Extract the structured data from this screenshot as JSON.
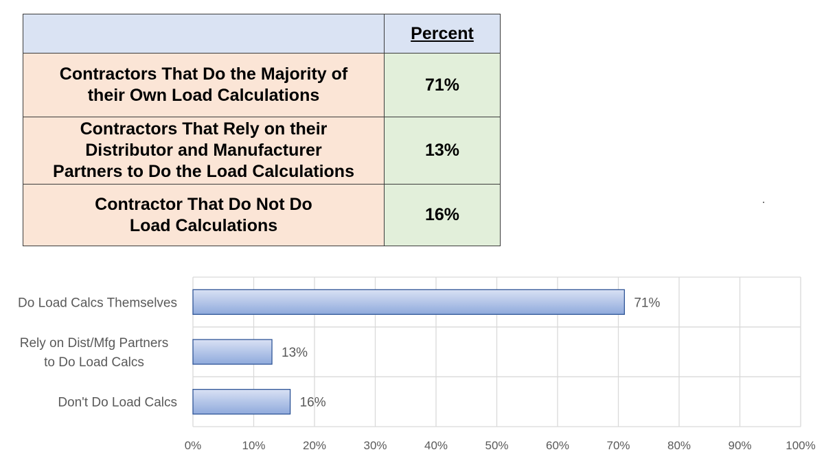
{
  "table": {
    "header": {
      "label": "",
      "percent": "Percent"
    },
    "rows": [
      {
        "label_lines": [
          "Contractors That Do the Majority of",
          "their Own Load Calculations"
        ],
        "value": "71%"
      },
      {
        "label_lines": [
          "Contractors That Rely on their",
          "Distributor and Manufacturer",
          "Partners to Do the Load Calculations"
        ],
        "value": "13%"
      },
      {
        "label_lines": [
          "Contractor That Do Not Do",
          "Load Calculations"
        ],
        "value": "16%"
      }
    ]
  },
  "colors": {
    "header_fill": "#dae3f3",
    "label_fill": "#fbe5d6",
    "value_fill": "#e2efda",
    "bar_top": "#d9e1f4",
    "bar_bottom": "#8faadc",
    "bar_stroke": "#2f5597",
    "grid": "#d9d9d9",
    "text_gray": "#595959"
  },
  "chart_data": {
    "type": "bar",
    "orientation": "horizontal",
    "categories": [
      [
        "Do Load Calcs Themselves"
      ],
      [
        "Rely on Dist/Mfg Partners",
        "to Do Load Calcs"
      ],
      [
        "Don't Do Load Calcs"
      ]
    ],
    "values": [
      71,
      13,
      16
    ],
    "data_labels": [
      "71%",
      "13%",
      "16%"
    ],
    "xlim": [
      0,
      100
    ],
    "xticks": [
      0,
      10,
      20,
      30,
      40,
      50,
      60,
      70,
      80,
      90,
      100
    ],
    "xtick_labels": [
      "0%",
      "10%",
      "20%",
      "30%",
      "40%",
      "50%",
      "60%",
      "70%",
      "80%",
      "90%",
      "100%"
    ],
    "grid": true,
    "legend": "none",
    "title": "",
    "xlabel": "",
    "ylabel": ""
  }
}
